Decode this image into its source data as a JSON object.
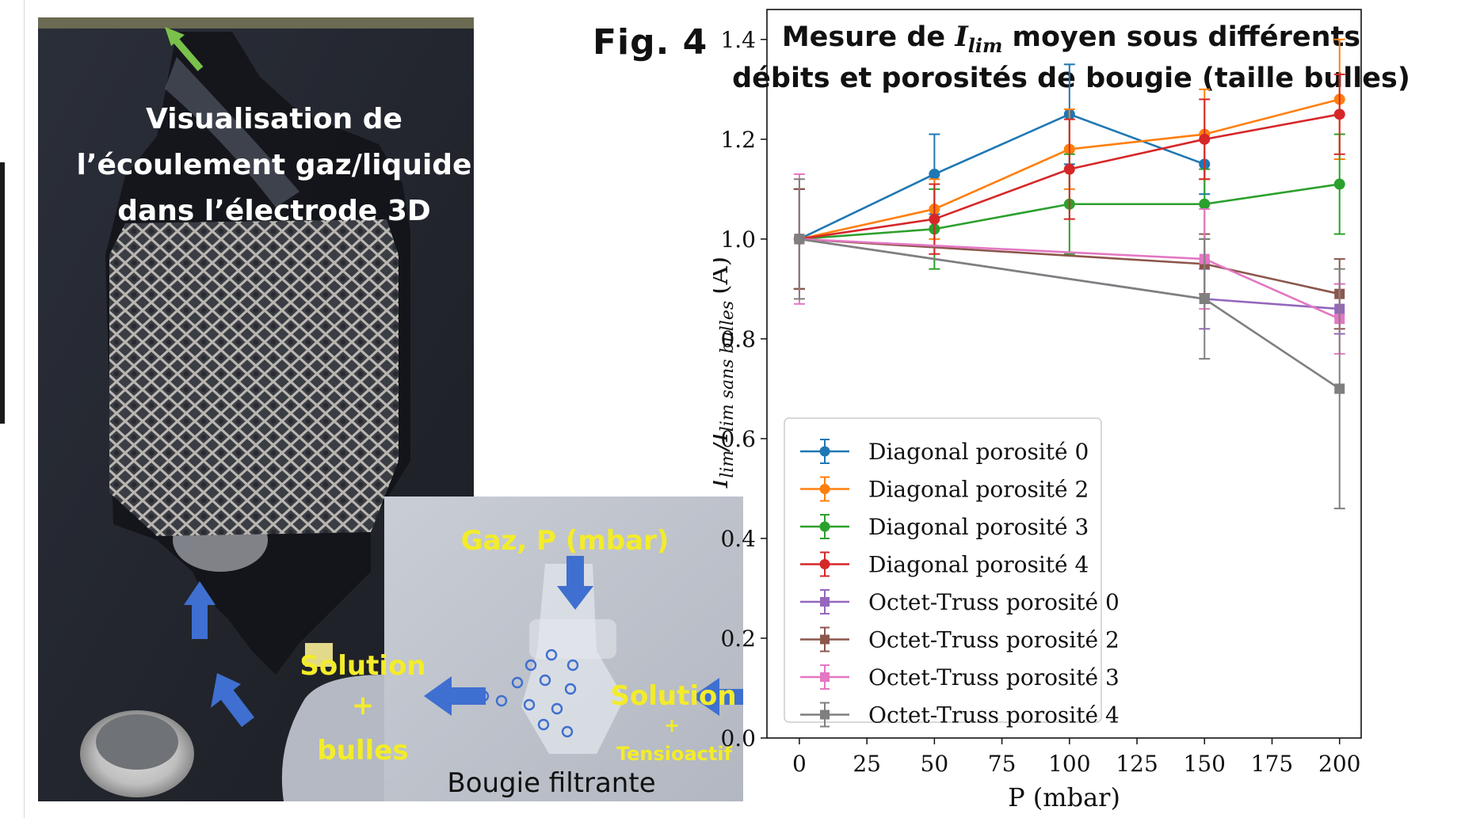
{
  "figure": {
    "label": "Fig. 4"
  },
  "photo": {
    "caption_lines": [
      "Visualisation de",
      "l’écoulement gaz/liquide",
      "dans l’électrode 3D"
    ],
    "gas_label": "Gaz, P (mbar)",
    "solution_right_top": "Solution",
    "solution_right_plus": "+",
    "solution_right_bottom": "Tensioactif",
    "solution_left_top": "Solution",
    "solution_left_plus": "+",
    "solution_left_bottom": "bulles",
    "filter_label": "Bougie filtrante"
  },
  "chart_data": {
    "type": "line",
    "title_line1_prefix": "Mesure de ",
    "title_symbol": "I",
    "title_symbol_sub": "lim",
    "title_line1_suffix": " moyen sous différents",
    "title_line2": "débits et porosités de bougie (taille bulles)",
    "xlabel": "P (mbar)",
    "ylabel_main": "I",
    "ylabel_sub1": "lim",
    "ylabel_slash": "/I",
    "ylabel_sub2": "lim sans bulles",
    "ylabel_unit": "(A)",
    "xlim": [
      -12,
      208
    ],
    "ylim": [
      0.0,
      1.46
    ],
    "x_ticks": [
      0,
      25,
      50,
      75,
      100,
      125,
      150,
      175,
      200
    ],
    "y_ticks": [
      0.0,
      0.2,
      0.4,
      0.6,
      0.8,
      1.0,
      1.2,
      1.4
    ],
    "x_tick_labels": [
      "0",
      "25",
      "50",
      "75",
      "100",
      "125",
      "150",
      "175",
      "200"
    ],
    "y_tick_labels": [
      "0.0",
      "0.2",
      "0.4",
      "0.6",
      "0.8",
      "1.0",
      "1.2",
      "1.4"
    ],
    "grid": false,
    "legend_position": "lower-left",
    "x": [
      0,
      50,
      100,
      150,
      200
    ],
    "series": [
      {
        "name": "Diagonal porosité 0",
        "color": "#1f77b4",
        "marker": "circle",
        "x": [
          0,
          50,
          100,
          150
        ],
        "values": [
          1.0,
          1.13,
          1.25,
          1.15
        ],
        "err": [
          0.1,
          0.08,
          0.1,
          0.06
        ]
      },
      {
        "name": "Diagonal porosité 2",
        "color": "#ff7f0e",
        "marker": "circle",
        "x": [
          0,
          50,
          100,
          150,
          200
        ],
        "values": [
          1.0,
          1.06,
          1.18,
          1.21,
          1.28
        ],
        "err": [
          0.1,
          0.06,
          0.08,
          0.09,
          0.12
        ]
      },
      {
        "name": "Diagonal porosité 3",
        "color": "#2ca02c",
        "marker": "circle",
        "x": [
          0,
          50,
          100,
          150,
          200
        ],
        "values": [
          1.0,
          1.02,
          1.07,
          1.07,
          1.11
        ],
        "err": [
          0.1,
          0.08,
          0.1,
          0.07,
          0.1
        ]
      },
      {
        "name": "Diagonal porosité 4",
        "color": "#d62728",
        "marker": "circle",
        "x": [
          0,
          50,
          100,
          150,
          200
        ],
        "values": [
          1.0,
          1.04,
          1.14,
          1.2,
          1.25
        ],
        "err": [
          0.1,
          0.07,
          0.1,
          0.08,
          0.08
        ]
      },
      {
        "name": "Octet-Truss porosité 0",
        "color": "#9467bd",
        "marker": "square",
        "x": [
          0,
          150,
          200
        ],
        "values": [
          1.0,
          0.88,
          0.86
        ],
        "err": [
          0.1,
          0.06,
          0.05
        ]
      },
      {
        "name": "Octet-Truss porosité 2",
        "color": "#8c564b",
        "marker": "square",
        "x": [
          0,
          150,
          200
        ],
        "values": [
          1.0,
          0.95,
          0.89
        ],
        "err": [
          0.1,
          0.06,
          0.07
        ]
      },
      {
        "name": "Octet-Truss porosité 3",
        "color": "#e377c2",
        "marker": "square",
        "x": [
          0,
          150,
          200
        ],
        "values": [
          1.0,
          0.96,
          0.84
        ],
        "err": [
          0.13,
          0.1,
          0.07
        ]
      },
      {
        "name": "Octet-Truss porosité 4",
        "color": "#7f7f7f",
        "marker": "square",
        "x": [
          0,
          150,
          200
        ],
        "values": [
          1.0,
          0.88,
          0.7
        ],
        "err": [
          0.12,
          0.12,
          0.24
        ]
      }
    ]
  }
}
